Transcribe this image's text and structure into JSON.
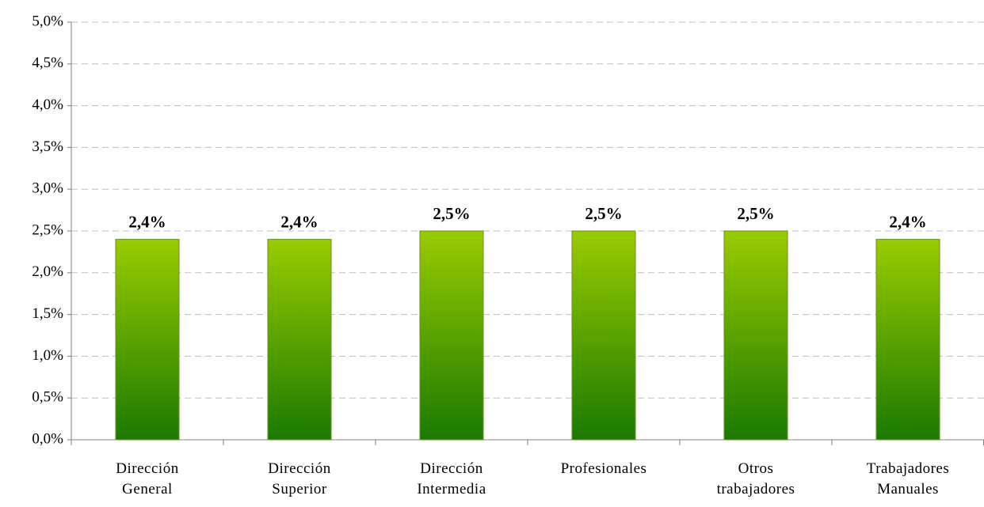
{
  "chart_data": {
    "type": "bar",
    "categories": [
      "Dirección General",
      "Dirección Superior",
      "Dirección Intermedia",
      "Profesionales",
      "Otros trabajadores",
      "Trabajadores Manuales"
    ],
    "values": [
      2.4,
      2.4,
      2.5,
      2.5,
      2.5,
      2.4
    ],
    "value_labels": [
      "2,4%",
      "2,4%",
      "2,5%",
      "2,5%",
      "2,5%",
      "2,4%"
    ],
    "color": "#99cc00",
    "ylim": [
      0,
      5
    ],
    "yticks": [
      {
        "value": 0,
        "label": "0,0%"
      },
      {
        "value": 0.5,
        "label": "0,5%"
      },
      {
        "value": 1,
        "label": "1,0%"
      },
      {
        "value": 1.5,
        "label": "1,5%"
      },
      {
        "value": 2,
        "label": "2,0%"
      },
      {
        "value": 2.5,
        "label": "2,5%"
      },
      {
        "value": 3,
        "label": "3,0%"
      },
      {
        "value": 3.5,
        "label": "3,5%"
      },
      {
        "value": 4,
        "label": "4,0%"
      },
      {
        "value": 4.5,
        "label": "4,5%"
      },
      {
        "value": 5,
        "label": "5,0%"
      }
    ],
    "grid": true
  }
}
